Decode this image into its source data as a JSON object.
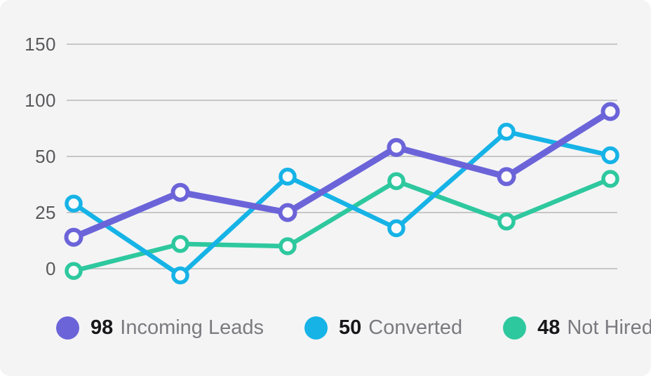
{
  "colors": {
    "card_background": "#f4f4f5",
    "grid_line": "#c7c7c8",
    "axis_label_text": "#59595c",
    "legend_number_text": "#18181b",
    "legend_label_text": "#7a7a7f",
    "point_fill": "#fafafb"
  },
  "chart_data": {
    "type": "line",
    "title": "",
    "xlabel": "",
    "ylabel": "",
    "grid": true,
    "legend_position": "bottom",
    "y_ticks": [
      150,
      100,
      50,
      25,
      0
    ],
    "y_axis_note": "tick labels 150/100/50/25/0 are evenly spaced (non-linear scale)",
    "series": [
      {
        "name": "Incoming Leads",
        "legend_value": "98",
        "color": "#6B64D9",
        "values": [
          14,
          34,
          25,
          58,
          41,
          90
        ]
      },
      {
        "name": "Converted",
        "legend_value": "50",
        "color": "#16B3E6",
        "values": [
          29,
          -3,
          41,
          18,
          72,
          51
        ]
      },
      {
        "name": "Not Hired",
        "legend_value": "48",
        "color": "#2EC89E",
        "values": [
          -1,
          11,
          10,
          39,
          21,
          40
        ]
      }
    ]
  }
}
